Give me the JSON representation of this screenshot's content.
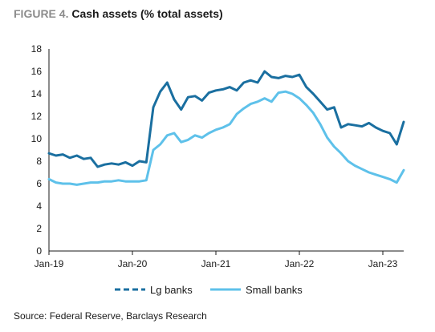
{
  "figure": {
    "number": "FIGURE 4.",
    "title": "Cash assets (% total assets)"
  },
  "source": "Source: Federal Reserve, Barclays Research",
  "chart_data": {
    "type": "line",
    "title": "Cash assets (% total assets)",
    "xlabel": "",
    "ylabel": "",
    "x_ticks": [
      "Jan-19",
      "Jan-20",
      "Jan-21",
      "Jan-22",
      "Jan-23"
    ],
    "xlim": [
      "2019-01",
      "2023-04"
    ],
    "y_ticks": [
      0,
      2,
      4,
      6,
      8,
      10,
      12,
      14,
      16,
      18
    ],
    "ylim": [
      0,
      18
    ],
    "grid": false,
    "legend_position": "bottom",
    "series": [
      {
        "name": "Lg banks",
        "color": "#1a6fa0",
        "x": [
          "2019-01",
          "2019-02",
          "2019-03",
          "2019-04",
          "2019-05",
          "2019-06",
          "2019-07",
          "2019-08",
          "2019-09",
          "2019-10",
          "2019-11",
          "2019-12",
          "2020-01",
          "2020-02",
          "2020-03",
          "2020-04",
          "2020-05",
          "2020-06",
          "2020-07",
          "2020-08",
          "2020-09",
          "2020-10",
          "2020-11",
          "2020-12",
          "2021-01",
          "2021-02",
          "2021-03",
          "2021-04",
          "2021-05",
          "2021-06",
          "2021-07",
          "2021-08",
          "2021-09",
          "2021-10",
          "2021-11",
          "2021-12",
          "2022-01",
          "2022-02",
          "2022-03",
          "2022-04",
          "2022-05",
          "2022-06",
          "2022-07",
          "2022-08",
          "2022-09",
          "2022-10",
          "2022-11",
          "2022-12",
          "2023-01",
          "2023-02",
          "2023-03",
          "2023-04"
        ],
        "values": [
          8.7,
          8.5,
          8.6,
          8.3,
          8.5,
          8.2,
          8.3,
          7.5,
          7.7,
          7.8,
          7.7,
          7.9,
          7.6,
          8.0,
          7.9,
          12.8,
          14.2,
          15.0,
          13.5,
          12.6,
          13.7,
          13.8,
          13.4,
          14.1,
          14.3,
          14.4,
          14.6,
          14.3,
          15.0,
          15.2,
          15.0,
          16.0,
          15.5,
          15.4,
          15.6,
          15.5,
          15.7,
          14.6,
          14.0,
          13.3,
          12.6,
          12.8,
          11.0,
          11.3,
          11.2,
          11.1,
          11.4,
          11.0,
          10.7,
          10.5,
          9.5,
          11.5
        ]
      },
      {
        "name": "Small banks",
        "color": "#5ec1ea",
        "x": [
          "2019-01",
          "2019-02",
          "2019-03",
          "2019-04",
          "2019-05",
          "2019-06",
          "2019-07",
          "2019-08",
          "2019-09",
          "2019-10",
          "2019-11",
          "2019-12",
          "2020-01",
          "2020-02",
          "2020-03",
          "2020-04",
          "2020-05",
          "2020-06",
          "2020-07",
          "2020-08",
          "2020-09",
          "2020-10",
          "2020-11",
          "2020-12",
          "2021-01",
          "2021-02",
          "2021-03",
          "2021-04",
          "2021-05",
          "2021-06",
          "2021-07",
          "2021-08",
          "2021-09",
          "2021-10",
          "2021-11",
          "2021-12",
          "2022-01",
          "2022-02",
          "2022-03",
          "2022-04",
          "2022-05",
          "2022-06",
          "2022-07",
          "2022-08",
          "2022-09",
          "2022-10",
          "2022-11",
          "2022-12",
          "2023-01",
          "2023-02",
          "2023-03",
          "2023-04"
        ],
        "values": [
          6.4,
          6.1,
          6.0,
          6.0,
          5.9,
          6.0,
          6.1,
          6.1,
          6.2,
          6.2,
          6.3,
          6.2,
          6.2,
          6.2,
          6.3,
          9.0,
          9.5,
          10.3,
          10.5,
          9.7,
          9.9,
          10.3,
          10.1,
          10.5,
          10.8,
          11.0,
          11.3,
          12.2,
          12.7,
          13.1,
          13.3,
          13.6,
          13.3,
          14.1,
          14.2,
          14.0,
          13.6,
          13.0,
          12.3,
          11.3,
          10.1,
          9.3,
          8.7,
          8.0,
          7.6,
          7.3,
          7.0,
          6.8,
          6.6,
          6.4,
          6.1,
          7.2
        ]
      }
    ]
  }
}
